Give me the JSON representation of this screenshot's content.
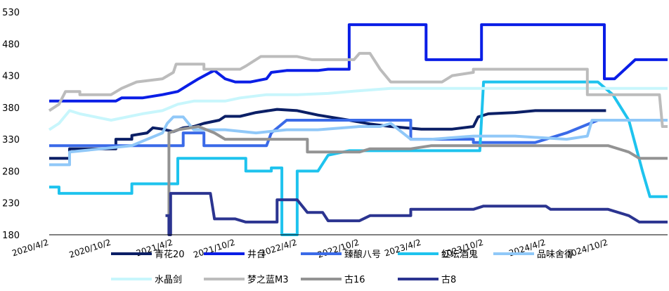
{
  "chart_data": {
    "type": "line",
    "title": "",
    "xlabel": "",
    "ylabel": "",
    "x_ticks": [
      "2020/4/2",
      "2020/10/2",
      "2021/4/2",
      "2021/10/2",
      "2022/4/2",
      "2022/10/2",
      "2023/4/2",
      "2023/10/2",
      "2024/4/2",
      "2024/10/2"
    ],
    "y_ticks": [
      180,
      230,
      280,
      330,
      380,
      430,
      480,
      530
    ],
    "ylim": [
      180,
      530
    ],
    "xlim": [
      "2020/4/2",
      "2025/3/25"
    ],
    "grid": false,
    "legend_position": "bottom",
    "series": [
      {
        "name": "青花20",
        "color": "#0b1f66",
        "width": 4,
        "points": [
          [
            "2020/4/2",
            300
          ],
          [
            "2020/6/1",
            300
          ],
          [
            "2020/6/1",
            315
          ],
          [
            "2020/10/15",
            315
          ],
          [
            "2020/10/15",
            330
          ],
          [
            "2020/12/1",
            330
          ],
          [
            "2020/12/1",
            336
          ],
          [
            "2021/1/15",
            340
          ],
          [
            "2021/2/1",
            348
          ],
          [
            "2021/3/1",
            346
          ],
          [
            "2021/4/2",
            342
          ],
          [
            "2021/5/1",
            348
          ],
          [
            "2021/6/1",
            350
          ],
          [
            "2021/7/1",
            355
          ],
          [
            "2021/8/15",
            360
          ],
          [
            "2021/9/1",
            366
          ],
          [
            "2021/10/15",
            366
          ],
          [
            "2021/12/1",
            372
          ],
          [
            "2022/2/1",
            377
          ],
          [
            "2022/4/1",
            375
          ],
          [
            "2022/6/1",
            368
          ],
          [
            "2022/9/1",
            360
          ],
          [
            "2022/11/1",
            354
          ],
          [
            "2023/1/1",
            350
          ],
          [
            "2023/4/1",
            346
          ],
          [
            "2023/7/1",
            346
          ],
          [
            "2023/9/1",
            350
          ],
          [
            "2023/9/15",
            365
          ],
          [
            "2023/10/15",
            370
          ],
          [
            "2024/1/1",
            372
          ],
          [
            "2024/3/1",
            375
          ],
          [
            "2024/6/1",
            375
          ],
          [
            "2024/9/25",
            375
          ]
        ]
      },
      {
        "name": "井台",
        "color": "#0a1ee6",
        "width": 4,
        "points": [
          [
            "2020/4/2",
            390
          ],
          [
            "2020/10/15",
            390
          ],
          [
            "2020/11/1",
            395
          ],
          [
            "2021/1/1",
            395
          ],
          [
            "2021/3/1",
            400
          ],
          [
            "2021/4/15",
            405
          ],
          [
            "2021/5/15",
            415
          ],
          [
            "2021/6/15",
            425
          ],
          [
            "2021/7/20",
            435
          ],
          [
            "2021/8/1",
            438
          ],
          [
            "2021/9/1",
            425
          ],
          [
            "2021/10/1",
            420
          ],
          [
            "2021/11/15",
            420
          ],
          [
            "2022/1/1",
            425
          ],
          [
            "2022/1/15",
            435
          ],
          [
            "2022/3/1",
            438
          ],
          [
            "2022/6/1",
            438
          ],
          [
            "2022/7/1",
            440
          ],
          [
            "2022/9/1",
            440
          ],
          [
            "2022/9/1",
            510
          ],
          [
            "2023/1/1",
            510
          ],
          [
            "2023/1/1",
            510
          ],
          [
            "2023/4/15",
            510
          ],
          [
            "2023/4/15",
            455
          ],
          [
            "2023/9/25",
            455
          ],
          [
            "2023/9/25",
            510
          ],
          [
            "2024/9/20",
            510
          ],
          [
            "2024/9/20",
            425
          ],
          [
            "2024/10/20",
            425
          ],
          [
            "2024/12/20",
            455
          ],
          [
            "2025/3/25",
            455
          ]
        ]
      },
      {
        "name": "臻酿八号",
        "color": "#3a6ae8",
        "width": 4,
        "points": [
          [
            "2020/4/2",
            320
          ],
          [
            "2021/5/1",
            320
          ],
          [
            "2021/5/1",
            340
          ],
          [
            "2021/7/1",
            340
          ],
          [
            "2021/7/1",
            320
          ],
          [
            "2022/1/1",
            320
          ],
          [
            "2022/1/15",
            340
          ],
          [
            "2022/3/1",
            360
          ],
          [
            "2022/7/1",
            360
          ],
          [
            "2023/2/1",
            360
          ],
          [
            "2023/3/1",
            360
          ],
          [
            "2023/3/1",
            330
          ],
          [
            "2023/5/1",
            330
          ],
          [
            "2023/9/1",
            330
          ],
          [
            "2023/9/1",
            325
          ],
          [
            "2024/3/1",
            325
          ],
          [
            "2024/6/1",
            340
          ],
          [
            "2024/9/1",
            360
          ],
          [
            "2025/3/25",
            360
          ]
        ]
      },
      {
        "name": "红坛酒鬼",
        "color": "#1ec3ee",
        "width": 4,
        "points": [
          [
            "2020/4/2",
            255
          ],
          [
            "2020/5/1",
            255
          ],
          [
            "2020/5/1",
            245
          ],
          [
            "2020/12/1",
            245
          ],
          [
            "2020/12/1",
            260
          ],
          [
            "2021/4/2",
            260
          ],
          [
            "2021/4/15",
            260
          ],
          [
            "2021/4/15",
            300
          ],
          [
            "2021/11/1",
            300
          ],
          [
            "2021/11/1",
            280
          ],
          [
            "2022/1/15",
            280
          ],
          [
            "2022/1/15",
            285
          ],
          [
            "2022/2/15",
            285
          ],
          [
            "2022/2/15",
            180
          ],
          [
            "2022/4/1",
            180
          ],
          [
            "2022/4/1",
            280
          ],
          [
            "2022/6/1",
            280
          ],
          [
            "2022/7/1",
            305
          ],
          [
            "2022/9/1",
            312
          ],
          [
            "2023/9/20",
            312
          ],
          [
            "2023/10/1",
            420
          ],
          [
            "2024/9/1",
            420
          ],
          [
            "2024/10/15",
            400
          ],
          [
            "2024/12/1",
            360
          ],
          [
            "2025/1/10",
            280
          ],
          [
            "2025/2/1",
            240
          ],
          [
            "2025/3/25",
            240
          ]
        ]
      },
      {
        "name": "品味舍得",
        "color": "#90c8f8",
        "width": 4,
        "points": [
          [
            "2020/4/2",
            290
          ],
          [
            "2020/6/1",
            290
          ],
          [
            "2020/6/1",
            310
          ],
          [
            "2020/12/1",
            320
          ],
          [
            "2021/3/1",
            340
          ],
          [
            "2021/3/15",
            355
          ],
          [
            "2021/4/2",
            365
          ],
          [
            "2021/5/1",
            365
          ],
          [
            "2021/6/1",
            345
          ],
          [
            "2021/9/1",
            345
          ],
          [
            "2021/12/1",
            340
          ],
          [
            "2022/3/1",
            345
          ],
          [
            "2022/6/1",
            345
          ],
          [
            "2022/10/1",
            350
          ],
          [
            "2022/12/1",
            350
          ],
          [
            "2023/1/1",
            355
          ],
          [
            "2023/3/1",
            330
          ],
          [
            "2023/5/1",
            330
          ],
          [
            "2023/9/1",
            335
          ],
          [
            "2024/1/1",
            335
          ],
          [
            "2024/6/1",
            330
          ],
          [
            "2024/8/1",
            335
          ],
          [
            "2024/8/15",
            360
          ],
          [
            "2025/3/25",
            360
          ]
        ]
      },
      {
        "name": "水晶剑",
        "color": "#c8f6fc",
        "width": 4,
        "points": [
          [
            "2020/4/2",
            345
          ],
          [
            "2020/5/1",
            355
          ],
          [
            "2020/6/1",
            375
          ],
          [
            "2020/7/1",
            370
          ],
          [
            "2020/10/1",
            360
          ],
          [
            "2021/1/1",
            370
          ],
          [
            "2021/3/1",
            375
          ],
          [
            "2021/4/15",
            385
          ],
          [
            "2021/6/1",
            390
          ],
          [
            "2021/9/1",
            390
          ],
          [
            "2021/10/15",
            395
          ],
          [
            "2022/1/1",
            400
          ],
          [
            "2022/4/1",
            400
          ],
          [
            "2022/7/1",
            402
          ],
          [
            "2022/9/1",
            405
          ],
          [
            "2023/1/1",
            410
          ],
          [
            "2023/4/1",
            410
          ],
          [
            "2023/9/1",
            410
          ],
          [
            "2024/1/1",
            410
          ],
          [
            "2024/6/1",
            410
          ],
          [
            "2025/3/25",
            410
          ]
        ]
      },
      {
        "name": "梦之蓝M3",
        "color": "#bcbcbc",
        "width": 4,
        "points": [
          [
            "2020/4/2",
            375
          ],
          [
            "2020/5/1",
            385
          ],
          [
            "2020/5/20",
            405
          ],
          [
            "2020/7/1",
            405
          ],
          [
            "2020/7/1",
            400
          ],
          [
            "2020/10/1",
            400
          ],
          [
            "2020/11/1",
            410
          ],
          [
            "2020/12/15",
            420
          ],
          [
            "2021/3/1",
            425
          ],
          [
            "2021/4/2",
            435
          ],
          [
            "2021/4/10",
            448
          ],
          [
            "2021/7/1",
            448
          ],
          [
            "2021/7/1",
            440
          ],
          [
            "2021/10/15",
            440
          ],
          [
            "2021/11/1",
            445
          ],
          [
            "2021/12/15",
            460
          ],
          [
            "2022/4/1",
            460
          ],
          [
            "2022/5/15",
            455
          ],
          [
            "2022/9/15",
            455
          ],
          [
            "2022/10/1",
            465
          ],
          [
            "2022/11/1",
            465
          ],
          [
            "2022/12/1",
            440
          ],
          [
            "2023/1/1",
            420
          ],
          [
            "2023/6/1",
            420
          ],
          [
            "2023/7/1",
            430
          ],
          [
            "2023/9/1",
            435
          ],
          [
            "2023/9/1",
            440
          ],
          [
            "2024/8/1",
            440
          ],
          [
            "2024/8/1",
            400
          ],
          [
            "2024/12/1",
            400
          ],
          [
            "2025/3/1",
            400
          ],
          [
            "2025/3/10",
            350
          ],
          [
            "2025/3/25",
            350
          ]
        ]
      },
      {
        "name": "古16",
        "color": "#939393",
        "width": 4,
        "points": [
          [
            "2021/3/20",
            180
          ],
          [
            "2021/3/20",
            340
          ],
          [
            "2021/4/15",
            345
          ],
          [
            "2021/6/15",
            350
          ],
          [
            "2021/8/1",
            340
          ],
          [
            "2021/9/1",
            330
          ],
          [
            "2022/1/1",
            330
          ],
          [
            "2022/5/1",
            330
          ],
          [
            "2022/5/1",
            310
          ],
          [
            "2022/10/1",
            310
          ],
          [
            "2022/11/1",
            315
          ],
          [
            "2023/3/1",
            315
          ],
          [
            "2023/5/1",
            320
          ],
          [
            "2024/10/1",
            320
          ],
          [
            "2024/12/1",
            310
          ],
          [
            "2025/1/1",
            300
          ],
          [
            "2025/3/25",
            300
          ]
        ]
      },
      {
        "name": "古8",
        "color": "#2b3490",
        "width": 4,
        "points": [
          [
            "2021/3/10",
            210
          ],
          [
            "2021/3/20",
            210
          ],
          [
            "2021/3/20",
            180
          ],
          [
            "2021/3/25",
            180
          ],
          [
            "2021/3/25",
            245
          ],
          [
            "2021/7/20",
            245
          ],
          [
            "2021/8/1",
            205
          ],
          [
            "2021/10/1",
            205
          ],
          [
            "2021/11/1",
            200
          ],
          [
            "2022/2/1",
            200
          ],
          [
            "2022/2/1",
            235
          ],
          [
            "2022/4/1",
            235
          ],
          [
            "2022/5/1",
            215
          ],
          [
            "2022/6/15",
            215
          ],
          [
            "2022/7/1",
            202
          ],
          [
            "2022/10/1",
            202
          ],
          [
            "2022/11/1",
            210
          ],
          [
            "2023/3/1",
            210
          ],
          [
            "2023/3/1",
            220
          ],
          [
            "2023/9/1",
            220
          ],
          [
            "2023/10/1",
            225
          ],
          [
            "2024/4/1",
            225
          ],
          [
            "2024/4/15",
            220
          ],
          [
            "2024/10/1",
            220
          ],
          [
            "2024/12/1",
            210
          ],
          [
            "2025/1/1",
            200
          ],
          [
            "2025/3/25",
            200
          ]
        ]
      }
    ]
  }
}
